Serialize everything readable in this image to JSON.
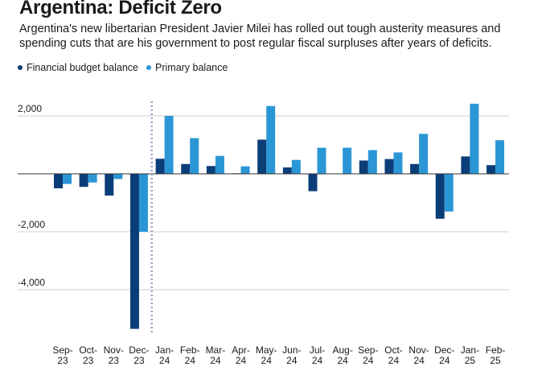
{
  "title": "Argentina: Deficit Zero",
  "subtitle": "Argentina's new libertarian President Javier Milei has rolled out tough austerity measures and spending cuts that are his government to post regular fiscal surpluses after years of deficits.",
  "colors": {
    "financial": "#0b3e78",
    "primary": "#2b96d5",
    "grid": "#cccccc",
    "zero": "#333333",
    "marker": "#9aa0c8"
  },
  "chart_data": {
    "type": "bar",
    "title": "Argentina: Deficit Zero",
    "xlabel": "",
    "ylabel": "",
    "ylim": [
      -5500,
      2600
    ],
    "yticks": [
      2000,
      0,
      -2000,
      -4000
    ],
    "ytick_labels": [
      "2,000",
      "",
      "-2,000",
      "-4,000"
    ],
    "categories": [
      [
        "Sep-",
        "23"
      ],
      [
        "Oct-",
        "23"
      ],
      [
        "Nov-",
        "23"
      ],
      [
        "Dec-",
        "23"
      ],
      [
        "Jan-",
        "24"
      ],
      [
        "Feb-",
        "24"
      ],
      [
        "Mar-",
        "24"
      ],
      [
        "Apr-",
        "24"
      ],
      [
        "May-",
        "24"
      ],
      [
        "Jun-",
        "24"
      ],
      [
        "Jul-",
        "24"
      ],
      [
        "Aug-",
        "24"
      ],
      [
        "Sep-",
        "24"
      ],
      [
        "Oct-",
        "24"
      ],
      [
        "Nov-",
        "24"
      ],
      [
        "Dec-",
        "24"
      ],
      [
        "Jan-",
        "25"
      ],
      [
        "Feb-",
        "25"
      ]
    ],
    "series": [
      {
        "name": "Financial budget balance",
        "values": [
          -500,
          -450,
          -750,
          -5350,
          520,
          340,
          270,
          20,
          1180,
          220,
          -600,
          0,
          460,
          510,
          340,
          -1550,
          600,
          300
        ]
      },
      {
        "name": "Primary balance",
        "values": [
          -350,
          -300,
          -180,
          -2000,
          2000,
          1230,
          620,
          260,
          2340,
          480,
          900,
          900,
          820,
          740,
          1380,
          -1300,
          2420,
          1160
        ]
      }
    ],
    "annotations": [
      {
        "type": "vertical-dotted-line",
        "between": [
          "Dec-23",
          "Jan-24"
        ]
      }
    ],
    "legend": "top-left",
    "grid": true
  }
}
